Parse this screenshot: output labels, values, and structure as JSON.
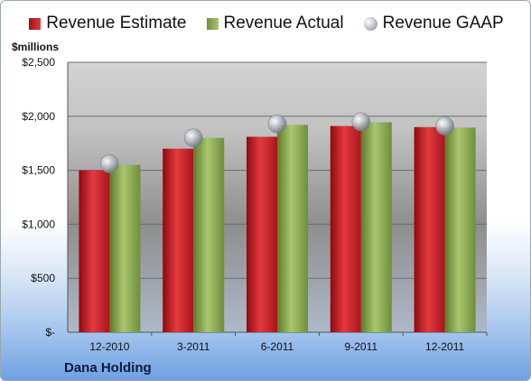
{
  "chart_data": {
    "type": "bar",
    "categories": [
      "12-2010",
      "3-2011",
      "6-2011",
      "9-2011",
      "12-2011"
    ],
    "series": [
      {
        "name": "Revenue Estimate",
        "values": [
          1500,
          1700,
          1810,
          1910,
          1900
        ],
        "color": "#c4161c"
      },
      {
        "name": "Revenue Actual",
        "values": [
          1550,
          1800,
          1920,
          1945,
          1895
        ],
        "color": "#8db050"
      },
      {
        "name": "Revenue GAAP",
        "values": [
          1560,
          1800,
          1930,
          1950,
          1910
        ],
        "color": "#c0c4ca",
        "style": "marker"
      }
    ],
    "ylabel": "$millions",
    "ylim": [
      0,
      2500
    ],
    "yticks": [
      0,
      500,
      1000,
      1500,
      2000,
      2500
    ],
    "ytick_labels": [
      "$-",
      "$500",
      "$1,000",
      "$1,500",
      "$2,000",
      "$2,500"
    ],
    "grid": true,
    "legend": "top"
  },
  "company": "Dana Holding"
}
